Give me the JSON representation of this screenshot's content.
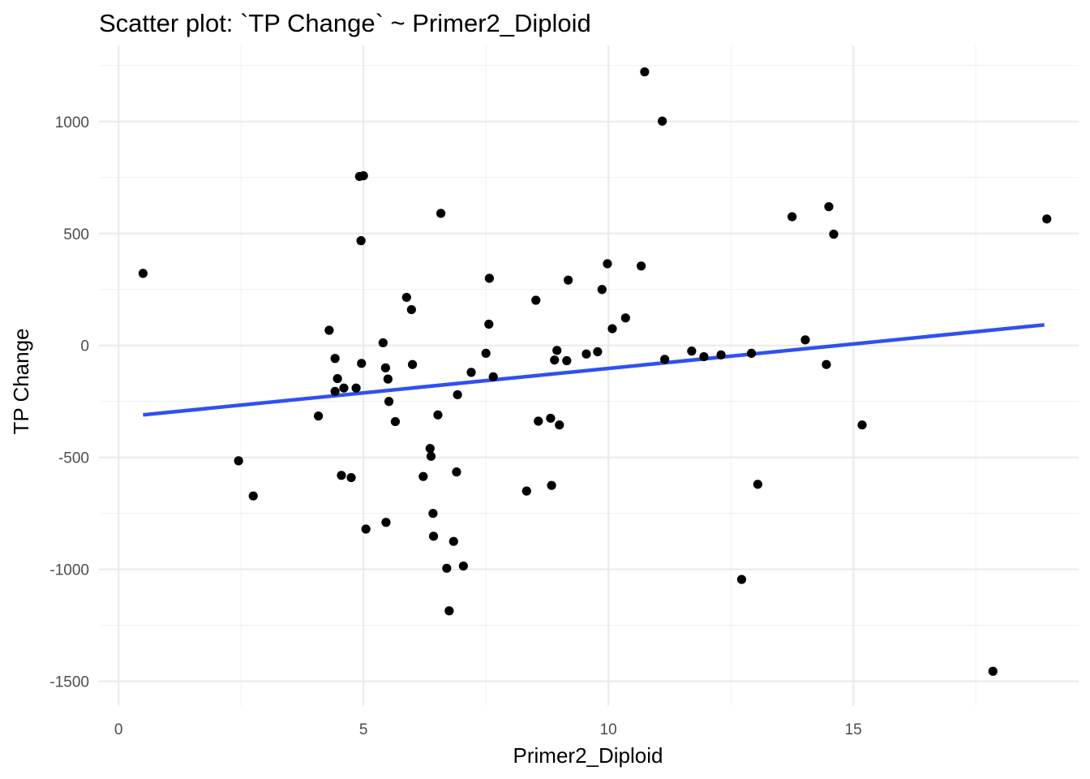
{
  "chart_data": {
    "type": "scatter",
    "title": "Scatter plot:  `TP Change`  ~  Primer2_Diploid",
    "xlabel": "Primer2_Diploid",
    "ylabel": "TP Change",
    "xlim": [
      -0.4,
      19.6
    ],
    "ylim": [
      -1610,
      1340
    ],
    "x_ticks": [
      0,
      5,
      10,
      15
    ],
    "x_tick_labels": [
      "0",
      "5",
      "10",
      "15"
    ],
    "x_minor_ticks": [
      2.5,
      7.5,
      12.5,
      17.5
    ],
    "y_ticks": [
      -1500,
      -1000,
      -500,
      0,
      500,
      1000
    ],
    "y_tick_labels": [
      "-1500",
      "-1000",
      "-500",
      "0",
      "500",
      "1000"
    ],
    "y_minor_ticks": [
      -1250,
      -750,
      -250,
      250,
      750,
      1250
    ],
    "grid": true,
    "legend": "none",
    "point_color": "#000000",
    "trend_color": "#3050f0",
    "trend_line": {
      "x": [
        0.5,
        18.9
      ],
      "y": [
        -310,
        92
      ]
    },
    "points": [
      {
        "x": 0.5,
        "y": 322
      },
      {
        "x": 2.45,
        "y": -515
      },
      {
        "x": 2.75,
        "y": -672
      },
      {
        "x": 4.08,
        "y": -315
      },
      {
        "x": 4.3,
        "y": 68
      },
      {
        "x": 4.42,
        "y": -58
      },
      {
        "x": 4.42,
        "y": -205
      },
      {
        "x": 4.47,
        "y": -148
      },
      {
        "x": 4.55,
        "y": -580
      },
      {
        "x": 4.6,
        "y": -190
      },
      {
        "x": 4.75,
        "y": -590
      },
      {
        "x": 4.85,
        "y": -190
      },
      {
        "x": 4.92,
        "y": 755
      },
      {
        "x": 4.95,
        "y": 468
      },
      {
        "x": 4.96,
        "y": -80
      },
      {
        "x": 5.0,
        "y": 758
      },
      {
        "x": 5.05,
        "y": -820
      },
      {
        "x": 5.4,
        "y": 12
      },
      {
        "x": 5.45,
        "y": -100
      },
      {
        "x": 5.46,
        "y": -790
      },
      {
        "x": 5.5,
        "y": -150
      },
      {
        "x": 5.52,
        "y": -250
      },
      {
        "x": 5.65,
        "y": -340
      },
      {
        "x": 5.88,
        "y": 215
      },
      {
        "x": 5.98,
        "y": 160
      },
      {
        "x": 6.0,
        "y": -85
      },
      {
        "x": 6.22,
        "y": -585
      },
      {
        "x": 6.36,
        "y": -460
      },
      {
        "x": 6.38,
        "y": -495
      },
      {
        "x": 6.42,
        "y": -750
      },
      {
        "x": 6.43,
        "y": -852
      },
      {
        "x": 6.52,
        "y": -310
      },
      {
        "x": 6.58,
        "y": 590
      },
      {
        "x": 6.7,
        "y": -995
      },
      {
        "x": 6.75,
        "y": -1185
      },
      {
        "x": 6.84,
        "y": -875
      },
      {
        "x": 6.9,
        "y": -565
      },
      {
        "x": 6.92,
        "y": -220
      },
      {
        "x": 7.04,
        "y": -985
      },
      {
        "x": 7.2,
        "y": -120
      },
      {
        "x": 7.5,
        "y": -35
      },
      {
        "x": 7.56,
        "y": 95
      },
      {
        "x": 7.57,
        "y": 300
      },
      {
        "x": 7.65,
        "y": -140
      },
      {
        "x": 8.33,
        "y": -650
      },
      {
        "x": 8.52,
        "y": 202
      },
      {
        "x": 8.57,
        "y": -338
      },
      {
        "x": 8.82,
        "y": -325
      },
      {
        "x": 8.84,
        "y": -625
      },
      {
        "x": 8.9,
        "y": -65
      },
      {
        "x": 8.95,
        "y": -22
      },
      {
        "x": 9.0,
        "y": -355
      },
      {
        "x": 9.15,
        "y": -68
      },
      {
        "x": 9.18,
        "y": 292
      },
      {
        "x": 9.55,
        "y": -38
      },
      {
        "x": 9.78,
        "y": -28
      },
      {
        "x": 9.87,
        "y": 250
      },
      {
        "x": 9.98,
        "y": 365
      },
      {
        "x": 10.08,
        "y": 75
      },
      {
        "x": 10.35,
        "y": 123
      },
      {
        "x": 10.67,
        "y": 355
      },
      {
        "x": 10.74,
        "y": 1222
      },
      {
        "x": 11.1,
        "y": 1002
      },
      {
        "x": 11.15,
        "y": -62
      },
      {
        "x": 11.7,
        "y": -25
      },
      {
        "x": 11.95,
        "y": -50
      },
      {
        "x": 12.3,
        "y": -42
      },
      {
        "x": 12.72,
        "y": -1045
      },
      {
        "x": 12.92,
        "y": -35
      },
      {
        "x": 13.05,
        "y": -620
      },
      {
        "x": 13.75,
        "y": 575
      },
      {
        "x": 14.02,
        "y": 25
      },
      {
        "x": 14.45,
        "y": -85
      },
      {
        "x": 14.5,
        "y": 620
      },
      {
        "x": 14.6,
        "y": 497
      },
      {
        "x": 15.18,
        "y": -355
      },
      {
        "x": 17.85,
        "y": -1455
      },
      {
        "x": 18.95,
        "y": 565
      }
    ]
  }
}
